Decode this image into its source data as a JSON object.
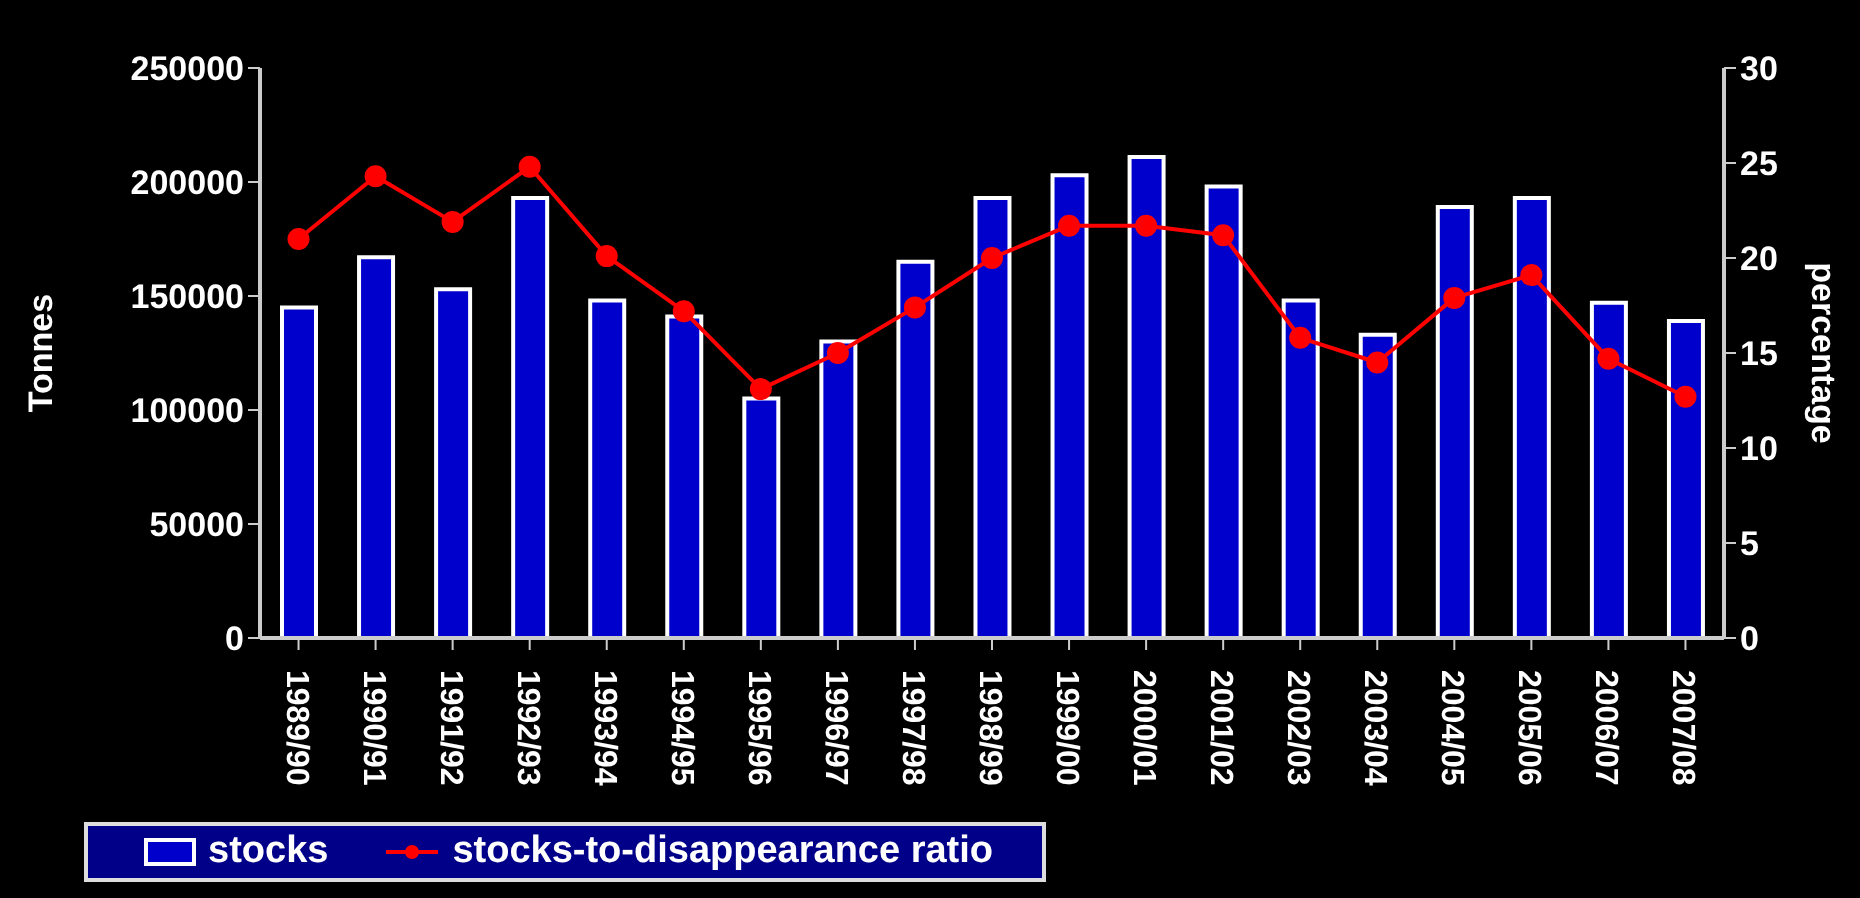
{
  "chart_data": {
    "type": "bar",
    "categories": [
      "1989/90",
      "1990/91",
      "1991/92",
      "1992/93",
      "1993/94",
      "1994/95",
      "1995/96",
      "1996/97",
      "1997/98",
      "1998/99",
      "1999/00",
      "2000/01",
      "2001/02",
      "2002/03",
      "2003/04",
      "2004/05",
      "2005/06",
      "2006/07",
      "2007/08"
    ],
    "series": [
      {
        "name": "stocks",
        "color": "#0000cc",
        "values": [
          145000,
          167000,
          153000,
          193000,
          148000,
          141000,
          105000,
          130000,
          165000,
          193000,
          203000,
          211000,
          198000,
          148000,
          133000,
          189000,
          193000,
          147000,
          139000
        ]
      },
      {
        "name": "stocks-to-disappearance ratio",
        "type": "line",
        "axis": "y2",
        "color": "#ff0000",
        "values": [
          21.0,
          24.3,
          21.9,
          24.8,
          20.1,
          17.2,
          13.1,
          15.0,
          17.4,
          20.0,
          21.7,
          21.7,
          21.2,
          15.8,
          14.5,
          17.9,
          19.1,
          14.7,
          12.7
        ]
      }
    ],
    "ylabel": "Tonnes",
    "y2label": "percentage",
    "ylim": [
      0,
      250000
    ],
    "yticks": [
      0,
      50000,
      100000,
      150000,
      200000,
      250000
    ],
    "y2lim": [
      0,
      30
    ],
    "y2ticks": [
      0,
      5,
      10,
      15,
      20,
      25,
      30
    ],
    "marker": "circle",
    "line_style": "solid",
    "grid": false,
    "legend": "bottom"
  }
}
